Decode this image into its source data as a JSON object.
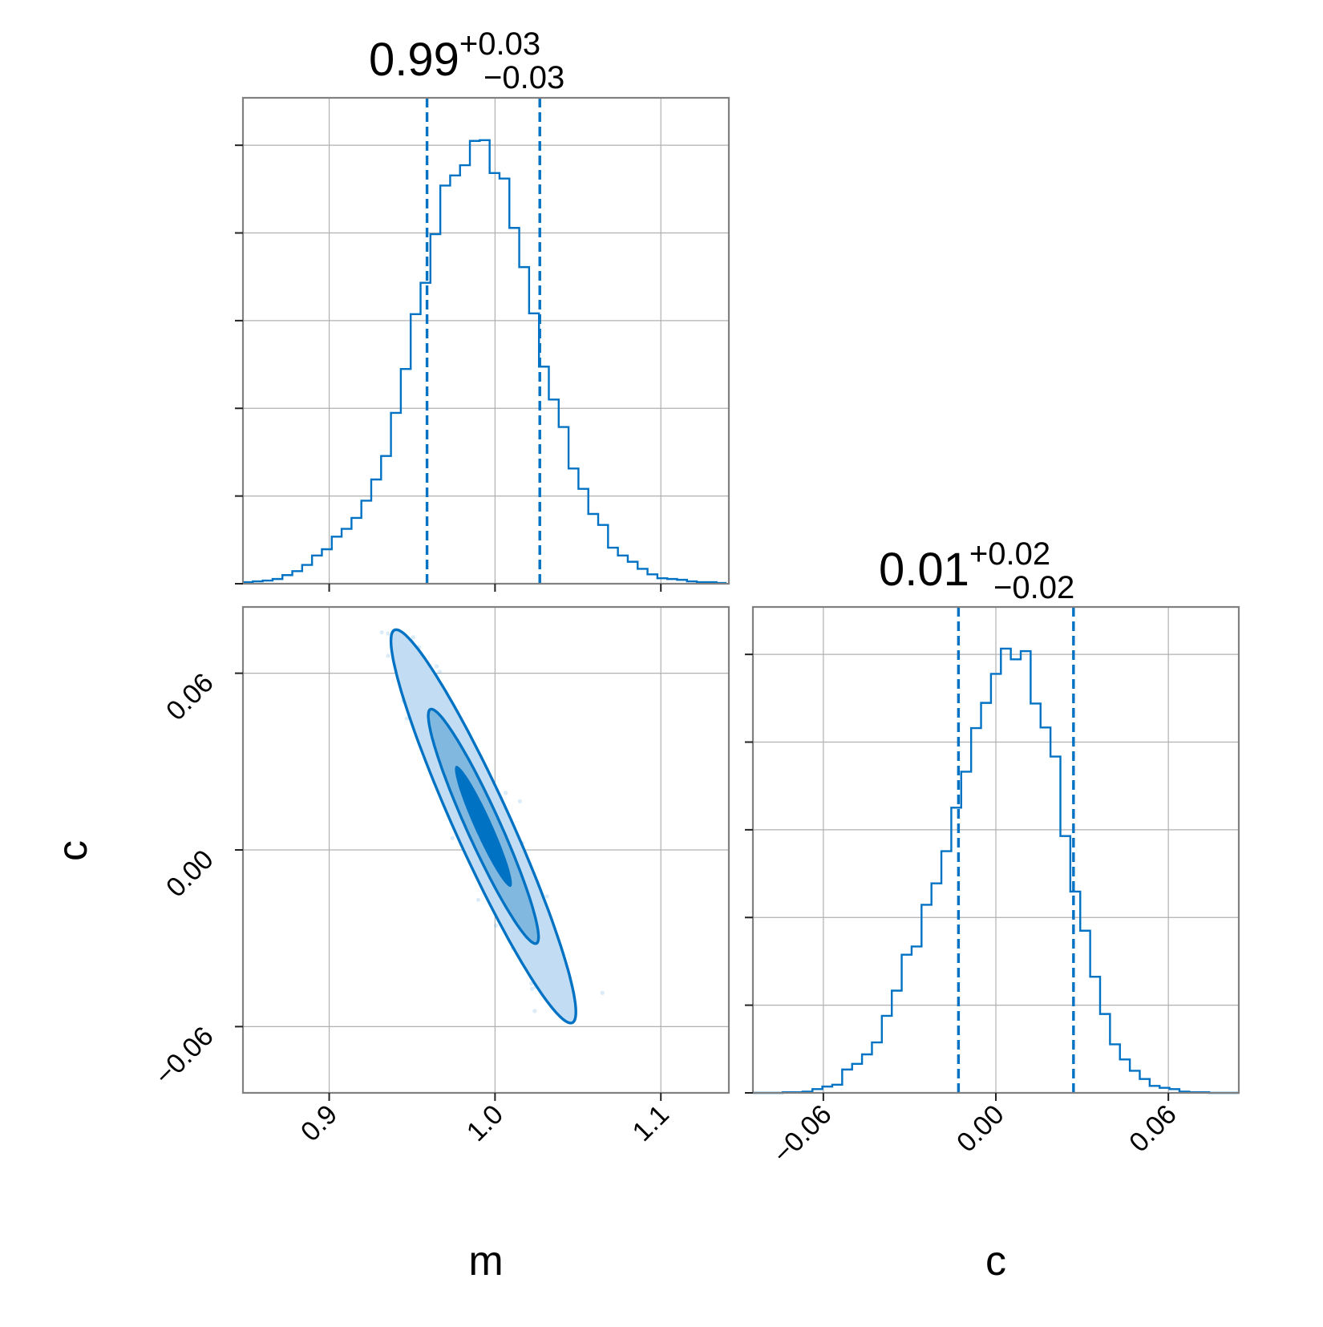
{
  "figure": {
    "type": "corner",
    "accent_color": "#0072c4",
    "level_fills": [
      "#c2ddf3",
      "#80b8e0",
      "#0072c4"
    ]
  },
  "chart_data": [
    {
      "id": "hist-m",
      "type": "histogram",
      "parameter": "m",
      "title": {
        "median": "0.99",
        "plus": "+0.03",
        "minus": "−0.03"
      },
      "xlim": [
        0.848,
        1.141
      ],
      "xticks": [
        0.9,
        1.0,
        1.1
      ],
      "quantiles": [
        0.959,
        1.027
      ],
      "bins_x0": 0.848,
      "bins_width": 0.00595,
      "counts": [
        0.002,
        0.003,
        0.004,
        0.006,
        0.011,
        0.016,
        0.024,
        0.036,
        0.044,
        0.06,
        0.07,
        0.084,
        0.106,
        0.133,
        0.163,
        0.218,
        0.274,
        0.344,
        0.384,
        0.446,
        0.508,
        0.521,
        0.534,
        0.565,
        0.566,
        0.524,
        0.517,
        0.454,
        0.404,
        0.345,
        0.277,
        0.235,
        0.2,
        0.147,
        0.121,
        0.089,
        0.075,
        0.046,
        0.036,
        0.028,
        0.019,
        0.012,
        0.007,
        0.006,
        0.005,
        0.003,
        0.002,
        0.002,
        0.001
      ],
      "ylim": [
        0,
        0.62
      ]
    },
    {
      "id": "hist-c",
      "type": "histogram",
      "parameter": "c",
      "title": {
        "median": "0.01",
        "plus": "+0.02",
        "minus": "−0.02"
      },
      "xlabel": "c",
      "xlim": [
        -0.0845,
        0.0845
      ],
      "xticks": [
        -0.06,
        0.0,
        0.06
      ],
      "xticklabels": [
        "−0.06",
        "0.00",
        "0.06"
      ],
      "quantiles": [
        -0.013,
        0.027
      ],
      "bins_x0": -0.0845,
      "bins_width": 0.00345,
      "counts": [
        0.0,
        0.0,
        0.0,
        0.001,
        0.001,
        0.002,
        0.006,
        0.01,
        0.013,
        0.037,
        0.046,
        0.061,
        0.08,
        0.122,
        0.162,
        0.219,
        0.232,
        0.298,
        0.332,
        0.383,
        0.452,
        0.509,
        0.578,
        0.618,
        0.664,
        0.704,
        0.687,
        0.7,
        0.617,
        0.579,
        0.533,
        0.407,
        0.319,
        0.257,
        0.184,
        0.125,
        0.077,
        0.053,
        0.035,
        0.022,
        0.011,
        0.008,
        0.006,
        0.002,
        0.001,
        0.001,
        0.0,
        0.0,
        0.0
      ],
      "ylim": [
        0,
        0.77
      ]
    },
    {
      "id": "contour-m-c",
      "type": "contour",
      "xlabel": "m",
      "ylabel": "c",
      "xlim": [
        0.848,
        1.141
      ],
      "ylim": [
        -0.0825,
        0.0825
      ],
      "xticks": [
        0.9,
        1.0,
        1.1
      ],
      "yticks": [
        -0.06,
        0.0,
        0.06
      ],
      "xticklabels": [
        "0.9",
        "1.0",
        "1.1"
      ],
      "yticklabels": [
        "−0.06",
        "0.00",
        "0.06"
      ],
      "mean": [
        0.993,
        0.008
      ],
      "cov": [
        [
          0.00046,
          -0.00052
        ],
        [
          -0.00052,
          0.00066
        ]
      ],
      "levels": [
        2.6,
        1.55,
        0.8
      ]
    }
  ]
}
